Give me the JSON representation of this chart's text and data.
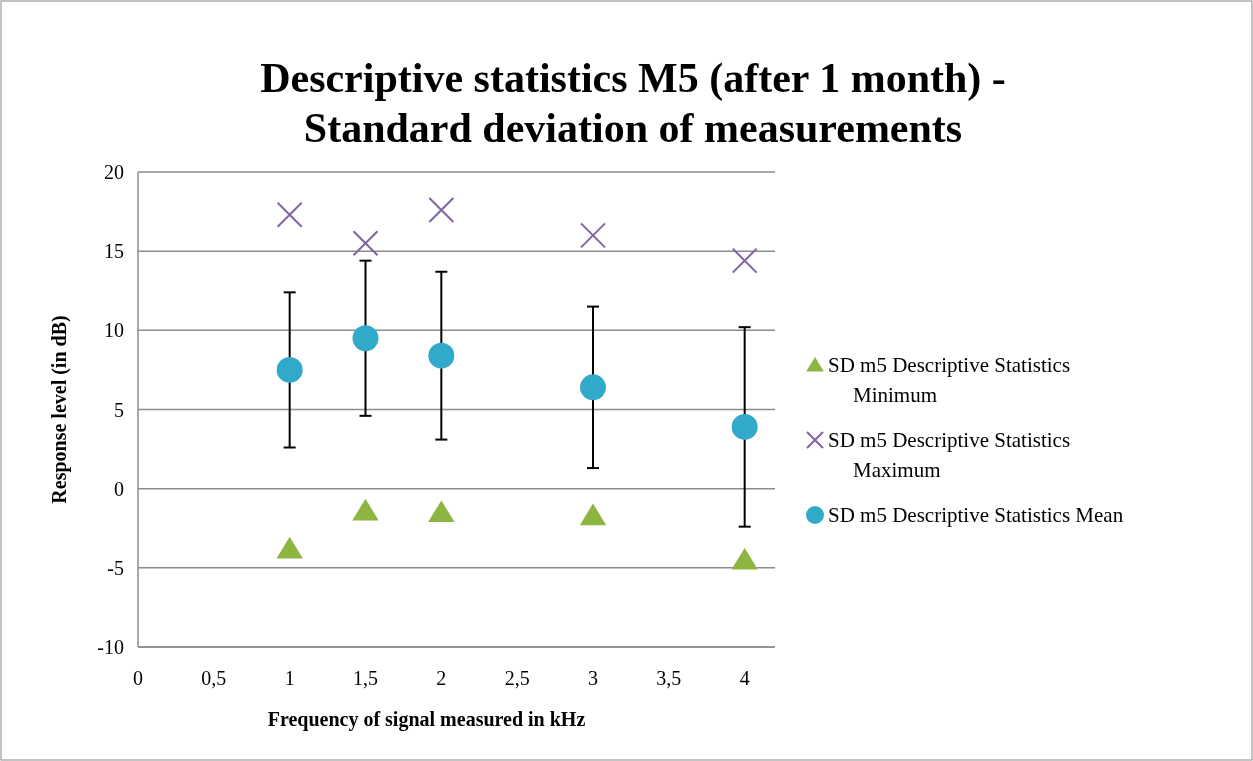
{
  "chart_data": {
    "type": "scatter",
    "title": "Descriptive statistics M5 (after 1 month) -\nStandard deviation of measurements",
    "xlabel": "Frequency of signal measured in kHz",
    "ylabel": "Response level (in dB)",
    "x": [
      1,
      1.5,
      2,
      3,
      4
    ],
    "series": [
      {
        "name": "SD m5 Descriptive Statistics Minimum",
        "color": "#8db542",
        "marker": "triangle",
        "values": [
          -3.8,
          -1.4,
          -1.5,
          -1.7,
          -4.5
        ]
      },
      {
        "name": "SD m5 Descriptive Statistics Maximum",
        "color": "#8064a2",
        "marker": "cross",
        "values": [
          17.3,
          15.5,
          17.6,
          16.0,
          14.4
        ]
      },
      {
        "name": "SD m5 Descriptive Statistics Mean",
        "color": "#31a9c9",
        "marker": "circle",
        "values": [
          7.5,
          9.5,
          8.4,
          6.4,
          3.9
        ],
        "errors": [
          4.9,
          4.9,
          5.3,
          5.1,
          6.3
        ]
      }
    ],
    "xlim": [
      0,
      4.2
    ],
    "xticks": [
      0,
      {
        "value": 0.5,
        "label": "0,5"
      },
      1,
      {
        "value": 1.5,
        "label": "1,5"
      },
      2,
      {
        "value": 2.5,
        "label": "2,5"
      },
      3,
      {
        "value": 3.5,
        "label": "3,5"
      },
      4
    ],
    "ylim": [
      -10,
      20
    ],
    "yticks": [
      -10,
      -5,
      0,
      5,
      10,
      15,
      20
    ],
    "grid": "y",
    "legend": "right"
  }
}
